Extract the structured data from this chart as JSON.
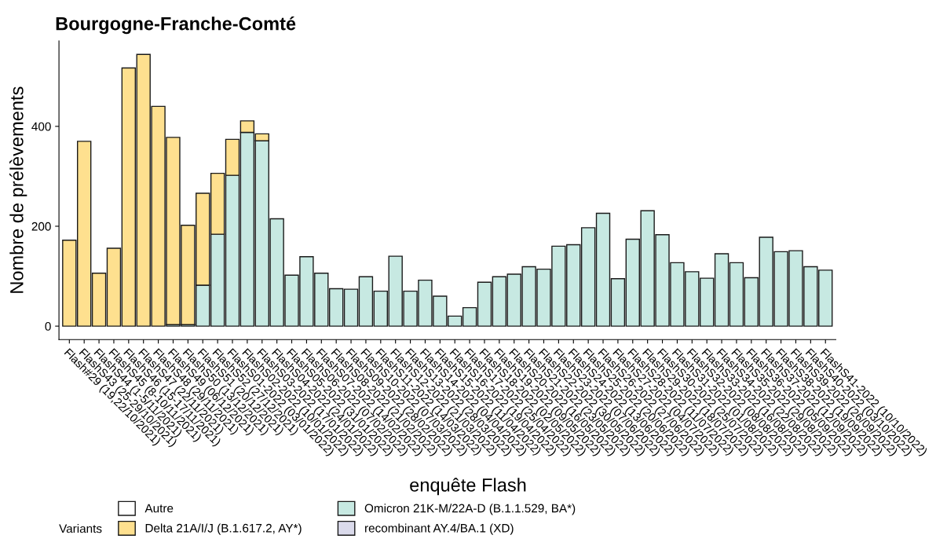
{
  "chart_data": {
    "type": "bar",
    "title": "Bourgogne-Franche-Comté",
    "xlabel": "enquête Flash",
    "ylabel": "Nombre de prélèvements",
    "legend_title": "Variants",
    "categories": [
      "Flash#29 (19,22/10/2021)",
      "FlashS43 (25-29/10/2021)",
      "FlashS44 (1-5/11/2021)",
      "FlashS45 (8-10/11/2021)",
      "FlashS46 (15-17/11/2021)",
      "FlashS47 (22/11/2021)",
      "FlashS48 (29/11/2021)",
      "FlashS49 (06/12/2021)",
      "FlashS50 (13/12/2021)",
      "FlashS51 (20/12/2021)",
      "FlashS52 (27/12/2021)",
      "FlashS01-2022 (03/01/2022)",
      "FlashS02-2022 (10/01/2022)",
      "FlashS03-2022 (17/01/2022)",
      "FlashS04-2022 (24/01/2022)",
      "FlashS05-2022 (31/01/2022)",
      "FlashS06-2022 (07/02/2022)",
      "FlashS07-2022 (14/02/2022)",
      "FlashS08-2022 (21/02/2022)",
      "FlashS09-2022 (28/02/2022)",
      "FlashS10-2022 (07/03/2022)",
      "FlashS11-2022 (14/03/2022)",
      "FlashS12-2022 (21/03/2022)",
      "FlashS13-2022 (28/03/2022)",
      "FlashS14-2022 (04/04/2022)",
      "FlashS15-2022 (11/04/2022)",
      "FlashS16-2022 (19/04/2022)",
      "FlashS17-2022 (25/04/2022)",
      "FlashS18-2022 (02/05/2022)",
      "FlashS19-2022 (09/05/2022)",
      "FlashS20-2022 (16/05/2022)",
      "FlashS21-2022 (23/05/2022)",
      "FlashS22-2022 (30/05/2022)",
      "FlashS23-2022 (07/06/2022)",
      "FlashS24-2022 (13/06/2022)",
      "FlashS25-2022 (20/06/2022)",
      "FlashS26-2022 (27/06/2022)",
      "FlashS27-2022 (04/07/2022)",
      "FlashS28-2022 (11/07/2022)",
      "FlashS29-2022 (18/07/2022)",
      "FlashS30-2022 (25/07/2022)",
      "FlashS31-2022 (01/08/2022)",
      "FlashS32-2022 (08/08/2022)",
      "FlashS33-2022 (16/08/2022)",
      "FlashS34-2022 (22/08/2022)",
      "FlashS35-2022 (29/08/2022)",
      "FlashS36-2022 (05/09/2022)",
      "FlashS37-2022 (12/09/2022)",
      "FlashS38-2022 (19/09/2022)",
      "FlashS39-2022 (26/09/2022)",
      "FlashS40-2022 (03/10/2022)",
      "FlashS41-2022 (10/10/2022)"
    ],
    "stacked": true,
    "series": [
      {
        "name": "recombinant AY.4/BA.1 (XD)",
        "color": "#dadaeb",
        "values": [
          null,
          null,
          null,
          null,
          null,
          null,
          null,
          null,
          null,
          null,
          null,
          null,
          null,
          null,
          null,
          null,
          null,
          null,
          null,
          null,
          null,
          null,
          null,
          null,
          null,
          null,
          null,
          null,
          null,
          null,
          null,
          null,
          null,
          null,
          null,
          null,
          null,
          null,
          null,
          null,
          null,
          null,
          null,
          null,
          null,
          null,
          null,
          null,
          null,
          null,
          null,
          null
        ]
      },
      {
        "name": "Omicron 21K-M/22A-D (B.1.1.529, BA*)",
        "color": "#c7e9e2",
        "values": [
          null,
          null,
          null,
          null,
          null,
          null,
          null,
          3,
          3,
          82,
          184,
          302,
          388,
          371,
          215,
          102,
          139,
          106,
          75,
          74,
          99,
          70,
          140,
          70,
          92,
          60,
          20,
          37,
          88,
          99,
          104,
          119,
          114,
          160,
          163,
          197,
          226,
          95,
          174,
          231,
          183,
          127,
          109,
          96,
          145,
          127,
          97,
          178,
          149,
          151,
          119,
          112
        ]
      },
      {
        "name": "Delta 21A/I/J (B.1.617.2, AY*)",
        "color": "#fee08f",
        "values": [
          172,
          370,
          106,
          156,
          517,
          544,
          440,
          375,
          199,
          184,
          122,
          72,
          23,
          14,
          null,
          null,
          null,
          null,
          null,
          null,
          null,
          null,
          null,
          null,
          null,
          null,
          null,
          null,
          null,
          null,
          null,
          null,
          null,
          null,
          null,
          null,
          null,
          null,
          null,
          null,
          null,
          null,
          null,
          null,
          null,
          null,
          null,
          null,
          null,
          null,
          null,
          null
        ]
      },
      {
        "name": "Autre",
        "color": "#ffffff",
        "values": [
          null,
          null,
          null,
          null,
          null,
          null,
          null,
          null,
          null,
          null,
          null,
          null,
          null,
          null,
          null,
          null,
          null,
          null,
          null,
          null,
          null,
          null,
          null,
          null,
          null,
          null,
          null,
          null,
          null,
          null,
          null,
          null,
          null,
          null,
          null,
          null,
          null,
          null,
          null,
          null,
          null,
          null,
          null,
          null,
          null,
          null,
          null,
          null,
          null,
          null,
          null,
          null
        ]
      }
    ],
    "ylim": [
      -27,
      571
    ],
    "yticks": [
      0,
      200,
      400
    ],
    "grid": false,
    "legend": "bottom left"
  }
}
